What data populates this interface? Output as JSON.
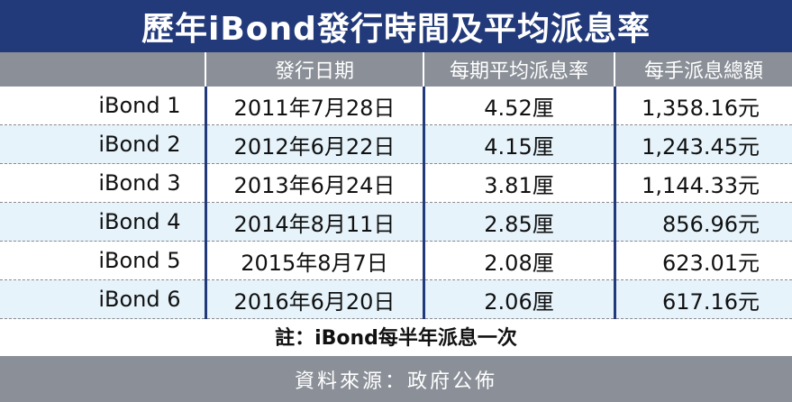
{
  "title": "歷年iBond發行時間及平均派息率",
  "table": {
    "headers": [
      "",
      "發行日期",
      "每期平均派息率",
      "每手派息總額"
    ],
    "rows": [
      {
        "name": "iBond 1",
        "date": "2011年7月28日",
        "rate": "4.52厘",
        "amount": "1,358.16元"
      },
      {
        "name": "iBond 2",
        "date": "2012年6月22日",
        "rate": "4.15厘",
        "amount": "1,243.45元"
      },
      {
        "name": "iBond 3",
        "date": "2013年6月24日",
        "rate": "3.81厘",
        "amount": "1,144.33元"
      },
      {
        "name": "iBond 4",
        "date": "2014年8月11日",
        "rate": "2.85厘",
        "amount": "856.96元"
      },
      {
        "name": "iBond 5",
        "date": "2015年8月7日",
        "rate": "2.08厘",
        "amount": "623.01元"
      },
      {
        "name": "iBond 6",
        "date": "2016年6月20日",
        "rate": "2.06厘",
        "amount": "617.16元"
      }
    ]
  },
  "note": "註：iBond每半年派息一次",
  "source": "資料來源：政府公佈",
  "colors": {
    "title_bg": "#223a7a",
    "header_bg": "#8b9098",
    "alt_row_bg": "#e6f3fb"
  }
}
